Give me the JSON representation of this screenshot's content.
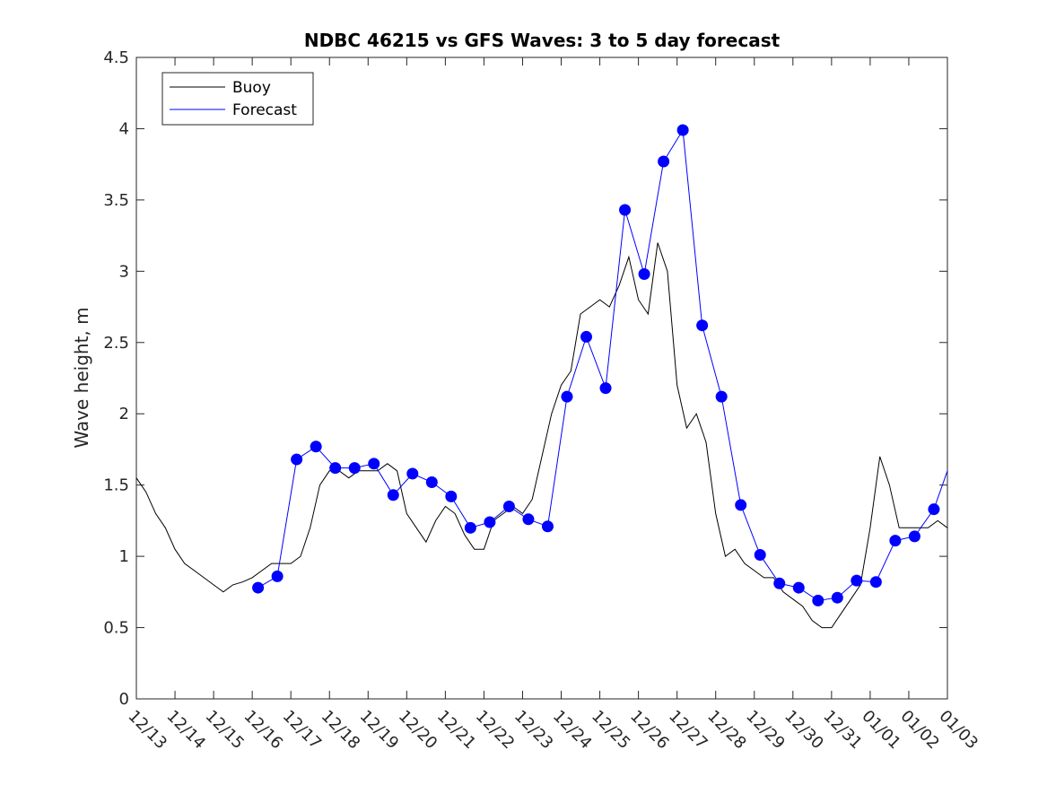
{
  "chart_data": {
    "type": "line",
    "title": "NDBC 46215 vs GFS Waves: 3 to 5 day forecast",
    "xlabel": "",
    "ylabel": "Wave height, m",
    "xlim": [
      0,
      21
    ],
    "ylim": [
      0,
      4.5
    ],
    "grid": false,
    "legend_position": "top-left",
    "x_ticks": [
      0,
      1,
      2,
      3,
      4,
      5,
      6,
      7,
      8,
      9,
      10,
      11,
      12,
      13,
      14,
      15,
      16,
      17,
      18,
      19,
      20,
      21
    ],
    "x_tick_labels": [
      "12/13",
      "12/14",
      "12/15",
      "12/16",
      "12/17",
      "12/18",
      "12/19",
      "12/20",
      "12/21",
      "12/22",
      "12/23",
      "12/24",
      "12/25",
      "12/26",
      "12/27",
      "12/28",
      "12/29",
      "12/30",
      "12/31",
      "01/01",
      "01/02",
      "01/03"
    ],
    "y_ticks": [
      0,
      0.5,
      1,
      1.5,
      2,
      2.5,
      3,
      3.5,
      4,
      4.5
    ],
    "y_tick_labels": [
      "0",
      "0.5",
      "1",
      "1.5",
      "2",
      "2.5",
      "3",
      "3.5",
      "4",
      "4.5"
    ],
    "legend": [
      "Buoy",
      "Forecast"
    ],
    "colors": {
      "buoy": "#000000",
      "forecast": "#0000ff",
      "axes": "#262626"
    },
    "series": [
      {
        "name": "Buoy",
        "x": [
          0,
          0.25,
          0.5,
          0.75,
          1,
          1.25,
          1.5,
          1.75,
          2,
          2.25,
          2.5,
          2.75,
          3,
          3.25,
          3.5,
          3.75,
          4,
          4.25,
          4.5,
          4.75,
          5,
          5.25,
          5.5,
          5.75,
          6,
          6.25,
          6.5,
          6.75,
          7,
          7.25,
          7.5,
          7.75,
          8,
          8.25,
          8.5,
          8.75,
          9,
          9.25,
          9.5,
          9.75,
          10,
          10.25,
          10.5,
          10.75,
          11,
          11.25,
          11.5,
          11.75,
          12,
          12.25,
          12.5,
          12.75,
          13,
          13.25,
          13.5,
          13.75,
          14,
          14.25,
          14.5,
          14.75,
          15,
          15.25,
          15.5,
          15.75,
          16,
          16.25,
          16.5,
          16.75,
          17,
          17.25,
          17.5,
          17.75,
          18,
          18.25,
          18.5,
          18.75,
          19,
          19.25,
          19.5,
          19.75,
          20,
          20.25,
          20.5,
          20.75,
          21
        ],
        "y": [
          1.55,
          1.45,
          1.3,
          1.2,
          1.05,
          0.95,
          0.9,
          0.85,
          0.8,
          0.75,
          0.8,
          0.82,
          0.85,
          0.9,
          0.95,
          0.95,
          0.95,
          1.0,
          1.2,
          1.5,
          1.6,
          1.6,
          1.55,
          1.6,
          1.6,
          1.6,
          1.65,
          1.6,
          1.3,
          1.2,
          1.1,
          1.25,
          1.35,
          1.3,
          1.15,
          1.05,
          1.05,
          1.25,
          1.3,
          1.35,
          1.3,
          1.4,
          1.7,
          2.0,
          2.2,
          2.3,
          2.7,
          2.75,
          2.8,
          2.75,
          2.9,
          3.1,
          2.8,
          2.7,
          3.2,
          3.0,
          2.2,
          1.9,
          2.0,
          1.8,
          1.3,
          1.0,
          1.05,
          0.95,
          0.9,
          0.85,
          0.85,
          0.75,
          0.7,
          0.65,
          0.55,
          0.5,
          0.5,
          0.6,
          0.7,
          0.8,
          1.2,
          1.7,
          1.5,
          1.2,
          1.2,
          1.2,
          1.2,
          1.25,
          1.2
        ]
      },
      {
        "name": "Forecast",
        "x": [
          3.15,
          3.65,
          4.15,
          4.65,
          5.15,
          5.65,
          6.15,
          6.65,
          7.15,
          7.65,
          8.15,
          8.65,
          9.15,
          9.65,
          10.15,
          10.65,
          11.15,
          11.65,
          12.15,
          12.65,
          13.15,
          13.65,
          14.15,
          14.65,
          15.15,
          15.65,
          16.15,
          16.65,
          17.15,
          17.65,
          18.15,
          18.65,
          19.15,
          19.65,
          20.15,
          20.65,
          21
        ],
        "y": [
          0.78,
          0.86,
          1.68,
          1.77,
          1.62,
          1.62,
          1.65,
          1.43,
          1.58,
          1.52,
          1.42,
          1.2,
          1.24,
          1.35,
          1.26,
          1.21,
          2.12,
          2.54,
          2.18,
          3.43,
          2.98,
          3.77,
          3.99,
          2.62,
          2.12,
          1.36,
          1.01,
          0.81,
          0.78,
          0.69,
          0.71,
          0.83,
          0.82,
          1.11,
          1.14,
          1.33,
          1.6
        ]
      }
    ],
    "markers": {
      "name": "Forecast points",
      "x": [
        3.15,
        3.65,
        4.15,
        4.65,
        5.15,
        5.65,
        6.15,
        6.65,
        7.15,
        7.65,
        8.15,
        8.65,
        9.15,
        9.65,
        10.15,
        10.65,
        11.15,
        11.65,
        12.15,
        12.65,
        13.15,
        13.65,
        14.15,
        14.65,
        15.15,
        15.65,
        16.15,
        16.65,
        17.15,
        17.65,
        18.15,
        18.65,
        19.15,
        19.65,
        20.15,
        20.65
      ],
      "y": [
        0.78,
        0.86,
        1.68,
        1.77,
        1.62,
        1.62,
        1.65,
        1.43,
        1.58,
        1.52,
        1.42,
        1.2,
        1.24,
        1.35,
        1.26,
        1.21,
        2.12,
        2.54,
        2.18,
        3.43,
        2.98,
        3.77,
        3.99,
        2.62,
        2.12,
        1.36,
        1.01,
        0.81,
        0.78,
        0.69,
        0.71,
        0.83,
        0.82,
        1.11,
        1.14,
        1.33
      ]
    }
  }
}
